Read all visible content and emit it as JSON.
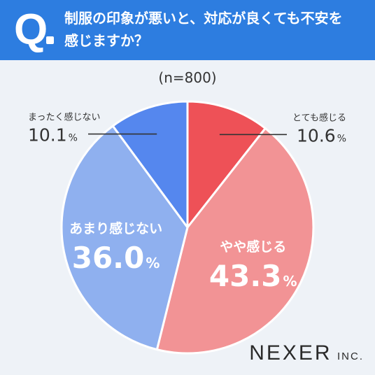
{
  "header": {
    "q_letter": "Q",
    "question_line1": "制服の印象が悪いと、対応が良くても不安を",
    "question_line2": "感じますか？",
    "bg_color": "#2d7de0"
  },
  "sample_label": "(n=800)",
  "logo": {
    "main": "NEXER",
    "suffix": "INC."
  },
  "chart_data": {
    "type": "pie",
    "title": "",
    "start_angle_deg": 0,
    "direction": "clockwise",
    "slices": [
      {
        "label": "とても感じる",
        "value": 10.6,
        "display": "10.6",
        "unit": "%",
        "color": "#ee5157",
        "label_position": "outside-right"
      },
      {
        "label": "やや感じる",
        "value": 43.3,
        "display": "43.3",
        "unit": "%",
        "color": "#f29395",
        "label_position": "inside"
      },
      {
        "label": "あまり感じない",
        "value": 36.0,
        "display": "36.0",
        "unit": "%",
        "color": "#8fb0ef",
        "label_position": "inside"
      },
      {
        "label": "まったく感じない",
        "value": 10.1,
        "display": "10.1",
        "unit": "%",
        "color": "#5587ee",
        "label_position": "outside-left"
      }
    ]
  }
}
